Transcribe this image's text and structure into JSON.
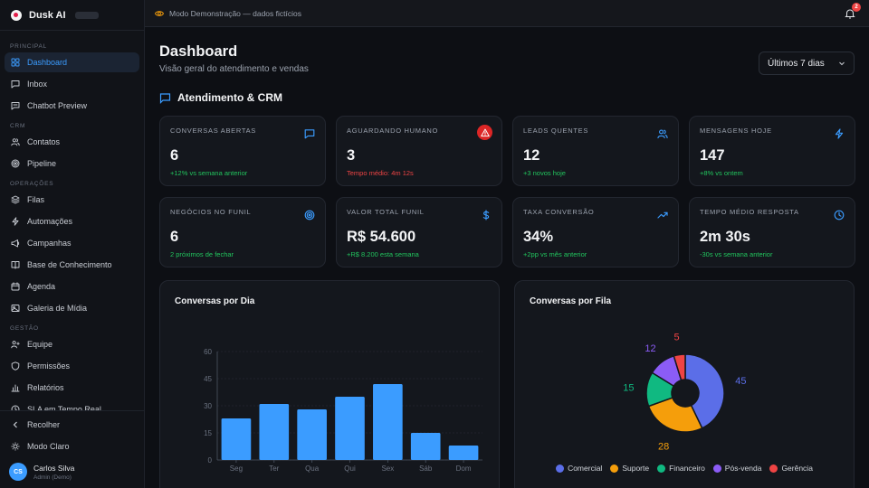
{
  "app": {
    "name": "Dusk AI"
  },
  "sidebar": {
    "sections": [
      {
        "label": "PRINCIPAL",
        "items": [
          {
            "label": "Dashboard",
            "icon": "grid-icon",
            "active": true
          },
          {
            "label": "Inbox",
            "icon": "message-icon"
          },
          {
            "label": "Chatbot Preview",
            "icon": "chat-icon"
          }
        ]
      },
      {
        "label": "CRM",
        "items": [
          {
            "label": "Contatos",
            "icon": "users-icon"
          },
          {
            "label": "Pipeline",
            "icon": "target-icon"
          }
        ]
      },
      {
        "label": "OPERAÇÕES",
        "items": [
          {
            "label": "Filas",
            "icon": "layers-icon"
          },
          {
            "label": "Automações",
            "icon": "bolt-icon"
          },
          {
            "label": "Campanhas",
            "icon": "megaphone-icon"
          },
          {
            "label": "Base de Conhecimento",
            "icon": "book-icon"
          },
          {
            "label": "Agenda",
            "icon": "calendar-icon"
          },
          {
            "label": "Galeria de Mídia",
            "icon": "image-icon"
          }
        ]
      },
      {
        "label": "GESTÃO",
        "items": [
          {
            "label": "Equipe",
            "icon": "team-icon"
          },
          {
            "label": "Permissões",
            "icon": "shield-icon"
          },
          {
            "label": "Relatórios",
            "icon": "bar-chart-icon"
          },
          {
            "label": "SLA em Tempo Real",
            "icon": "clock-icon"
          }
        ]
      }
    ],
    "collapse_label": "Recolher",
    "theme_label": "Modo Claro",
    "user": {
      "initials": "CS",
      "name": "Carlos Silva",
      "role": "Admin (Demo)"
    }
  },
  "topbar": {
    "demo_text": "Modo Demonstração — dados fictícios",
    "notifications": "2"
  },
  "header": {
    "title": "Dashboard",
    "subtitle": "Visão geral do atendimento e vendas",
    "period": "Últimos 7 dias"
  },
  "section": {
    "title": "Atendimento & CRM"
  },
  "cards": [
    {
      "label": "CONVERSAS ABERTAS",
      "value": "6",
      "sub": "+12% vs semana anterior",
      "tone": "green",
      "icon": "message-icon"
    },
    {
      "label": "AGUARDANDO HUMANO",
      "value": "3",
      "sub": "Tempo médio: 4m 12s",
      "tone": "red",
      "icon": "alert-icon"
    },
    {
      "label": "LEADS QUENTES",
      "value": "12",
      "sub": "+3 novos hoje",
      "tone": "green",
      "icon": "users-icon"
    },
    {
      "label": "MENSAGENS HOJE",
      "value": "147",
      "sub": "+8% vs ontem",
      "tone": "green",
      "icon": "bolt-icon"
    },
    {
      "label": "NEGÓCIOS NO FUNIL",
      "value": "6",
      "sub": "2 próximos de fechar",
      "tone": "green",
      "icon": "target-icon"
    },
    {
      "label": "VALOR TOTAL FUNIL",
      "value": "R$ 54.600",
      "sub": "+R$ 8.200 esta semana",
      "tone": "green",
      "icon": "dollar-icon"
    },
    {
      "label": "TAXA CONVERSÃO",
      "value": "34%",
      "sub": "+2pp vs mês anterior",
      "tone": "green",
      "icon": "trend-up-icon"
    },
    {
      "label": "TEMPO MÉDIO RESPOSTA",
      "value": "2m 30s",
      "sub": "-30s vs semana anterior",
      "tone": "green",
      "icon": "clock-icon"
    }
  ],
  "colors": {
    "accent": "#3b9cff",
    "green": "#22c55e",
    "red": "#ef4444"
  },
  "chart_data": [
    {
      "type": "bar",
      "title": "Conversas por Dia",
      "categories": [
        "Seg",
        "Ter",
        "Qua",
        "Qui",
        "Sex",
        "Sáb",
        "Dom"
      ],
      "values": [
        23,
        31,
        28,
        35,
        42,
        15,
        8
      ],
      "ylim": [
        0,
        60
      ],
      "yticks": [
        0,
        15,
        30,
        45,
        60
      ],
      "color": "#3b9cff",
      "grid": true
    },
    {
      "type": "pie",
      "title": "Conversas por Fila",
      "labels": [
        "Comercial",
        "Suporte",
        "Financeiro",
        "Pós-venda",
        "Gerência"
      ],
      "values": [
        45,
        28,
        15,
        12,
        5
      ],
      "colors": [
        "#5b6ee8",
        "#f59e0b",
        "#10b981",
        "#8b5cf6",
        "#ef4444"
      ],
      "legend": "bottom"
    }
  ]
}
